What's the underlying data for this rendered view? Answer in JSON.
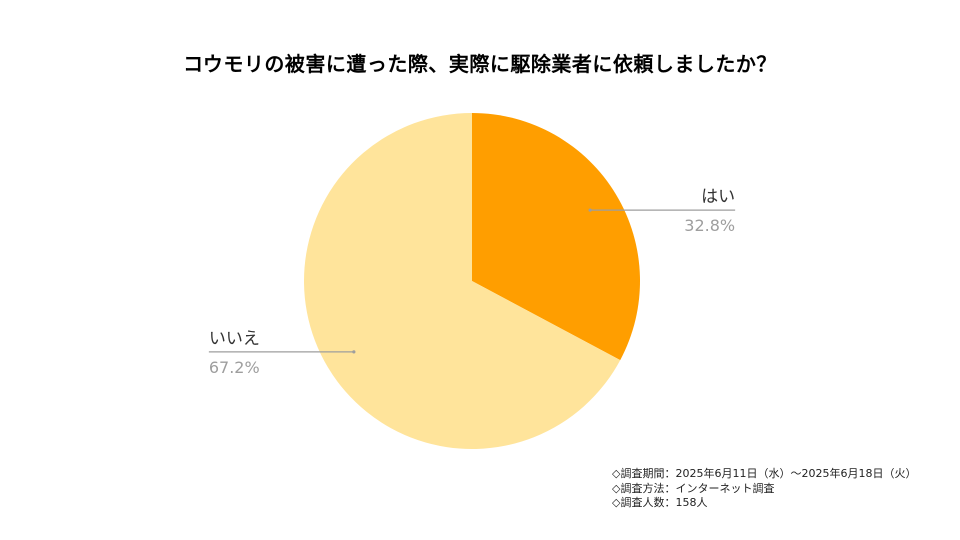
{
  "chart_data": {
    "type": "pie",
    "title": "コウモリの被害に遭った際、実際に駆除業者に依頼しましたか？",
    "categories": [
      "はい",
      "いいえ"
    ],
    "values": [
      32.8,
      67.2
    ],
    "value_labels": [
      "32.8%",
      "67.2%"
    ],
    "colors": [
      "#FF9E00",
      "#FFE49B"
    ],
    "legend": "none"
  },
  "notes": [
    "◇調査期間：2025年6月11日（水）～2025年6月18日（火）",
    "◇調査方法：インターネット調査",
    "◇調査人数：158人"
  ]
}
